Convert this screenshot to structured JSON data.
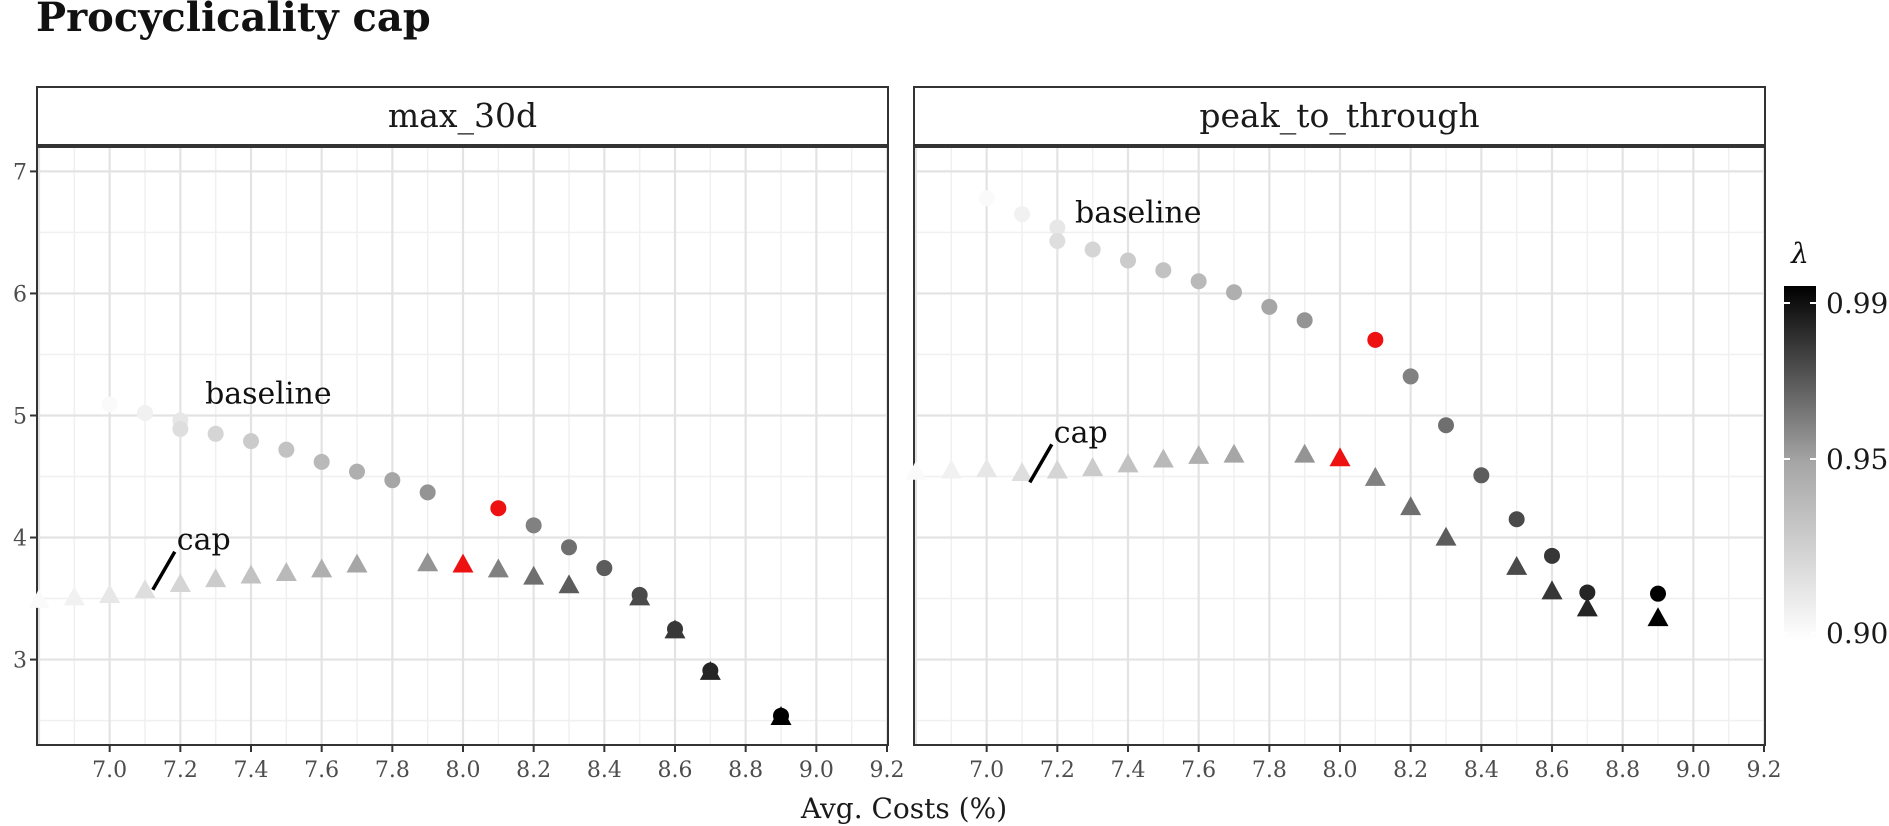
{
  "title": "Procyclicality cap",
  "chart_data": {
    "type": "scatter",
    "title": "Procyclicality cap",
    "xlabel": "Avg. Costs (%)",
    "ylabel": "",
    "xlim": [
      6.8,
      9.2
    ],
    "ylim": [
      2.3,
      7.2
    ],
    "x_ticks": [
      "7.0",
      "7.2",
      "7.4",
      "7.6",
      "7.8",
      "8.0",
      "8.2",
      "8.4",
      "8.6",
      "8.8",
      "9.0",
      "9.2"
    ],
    "y_ticks": [
      "3",
      "4",
      "5",
      "6",
      "7"
    ],
    "grid": true,
    "legend": {
      "title": "λ",
      "type": "colorbar",
      "position": "right",
      "labels": [
        "0.99",
        "0.95",
        "0.90"
      ],
      "range": [
        0.9,
        0.99
      ],
      "values": [
        0.99,
        0.95,
        0.9
      ]
    },
    "highlight_color": "#ee1111",
    "facets": [
      {
        "label": "max_30d",
        "annotations": [
          {
            "text": "baseline",
            "x": 7.27,
            "y": 5.1
          },
          {
            "text": "cap",
            "x": 7.19,
            "y": 3.9
          }
        ],
        "series": [
          {
            "name": "baseline",
            "shape": "circle",
            "points": [
              [
                7.0,
                5.09,
                0.9
              ],
              [
                7.1,
                5.02,
                0.905
              ],
              [
                7.2,
                4.96,
                0.91
              ],
              [
                7.2,
                4.89,
                0.915
              ],
              [
                7.3,
                4.85,
                0.92
              ],
              [
                7.4,
                4.79,
                0.925
              ],
              [
                7.5,
                4.72,
                0.93
              ],
              [
                7.6,
                4.62,
                0.935
              ],
              [
                7.7,
                4.54,
                0.94
              ],
              [
                7.8,
                4.47,
                0.945
              ],
              [
                7.9,
                4.37,
                0.95
              ],
              [
                8.1,
                4.24,
                "highlight"
              ],
              [
                8.2,
                4.1,
                0.955
              ],
              [
                8.3,
                3.92,
                0.96
              ],
              [
                8.4,
                3.75,
                0.965
              ],
              [
                8.5,
                3.53,
                0.97
              ],
              [
                8.6,
                3.25,
                0.975
              ],
              [
                8.7,
                2.91,
                0.98
              ],
              [
                8.9,
                2.54,
                0.99
              ]
            ]
          },
          {
            "name": "cap",
            "shape": "triangle",
            "points": [
              [
                6.8,
                3.49,
                0.9
              ],
              [
                6.9,
                3.51,
                0.905
              ],
              [
                7.0,
                3.53,
                0.91
              ],
              [
                7.1,
                3.57,
                0.915
              ],
              [
                7.2,
                3.62,
                0.92
              ],
              [
                7.3,
                3.66,
                0.925
              ],
              [
                7.4,
                3.69,
                0.93
              ],
              [
                7.5,
                3.71,
                0.935
              ],
              [
                7.6,
                3.74,
                0.94
              ],
              [
                7.7,
                3.78,
                0.945
              ],
              [
                7.9,
                3.79,
                0.95
              ],
              [
                8.0,
                3.78,
                "highlight"
              ],
              [
                8.1,
                3.74,
                0.955
              ],
              [
                8.2,
                3.68,
                0.96
              ],
              [
                8.3,
                3.61,
                0.965
              ],
              [
                8.5,
                3.51,
                0.97
              ],
              [
                8.6,
                3.24,
                0.975
              ],
              [
                8.7,
                2.9,
                0.98
              ],
              [
                8.9,
                2.53,
                0.99
              ]
            ]
          }
        ]
      },
      {
        "label": "peak_to_through",
        "annotations": [
          {
            "text": "baseline",
            "x": 7.25,
            "y": 6.58
          },
          {
            "text": "cap",
            "x": 7.19,
            "y": 4.78
          }
        ],
        "series": [
          {
            "name": "baseline",
            "shape": "circle",
            "points": [
              [
                7.0,
                6.78,
                0.9
              ],
              [
                7.1,
                6.65,
                0.905
              ],
              [
                7.2,
                6.54,
                0.91
              ],
              [
                7.2,
                6.43,
                0.915
              ],
              [
                7.3,
                6.36,
                0.92
              ],
              [
                7.4,
                6.27,
                0.925
              ],
              [
                7.5,
                6.19,
                0.93
              ],
              [
                7.6,
                6.1,
                0.935
              ],
              [
                7.7,
                6.01,
                0.94
              ],
              [
                7.8,
                5.89,
                0.945
              ],
              [
                7.9,
                5.78,
                0.95
              ],
              [
                8.1,
                5.62,
                "highlight"
              ],
              [
                8.2,
                5.32,
                0.955
              ],
              [
                8.3,
                4.92,
                0.96
              ],
              [
                8.4,
                4.51,
                0.965
              ],
              [
                8.5,
                4.15,
                0.97
              ],
              [
                8.6,
                3.85,
                0.975
              ],
              [
                8.7,
                3.55,
                0.98
              ],
              [
                8.9,
                3.54,
                0.99
              ]
            ]
          },
          {
            "name": "cap",
            "shape": "triangle",
            "points": [
              [
                6.8,
                4.54,
                0.9
              ],
              [
                6.9,
                4.55,
                0.905
              ],
              [
                7.0,
                4.56,
                0.91
              ],
              [
                7.1,
                4.53,
                0.915
              ],
              [
                7.2,
                4.55,
                0.92
              ],
              [
                7.3,
                4.57,
                0.925
              ],
              [
                7.4,
                4.6,
                0.93
              ],
              [
                7.5,
                4.64,
                0.935
              ],
              [
                7.6,
                4.67,
                0.94
              ],
              [
                7.7,
                4.68,
                0.945
              ],
              [
                7.9,
                4.68,
                0.95
              ],
              [
                8.0,
                4.65,
                "highlight"
              ],
              [
                8.1,
                4.49,
                0.955
              ],
              [
                8.2,
                4.25,
                0.96
              ],
              [
                8.3,
                4.0,
                0.965
              ],
              [
                8.5,
                3.76,
                0.97
              ],
              [
                8.6,
                3.56,
                0.975
              ],
              [
                8.7,
                3.42,
                0.98
              ],
              [
                8.9,
                3.34,
                0.99
              ]
            ]
          }
        ]
      }
    ]
  }
}
